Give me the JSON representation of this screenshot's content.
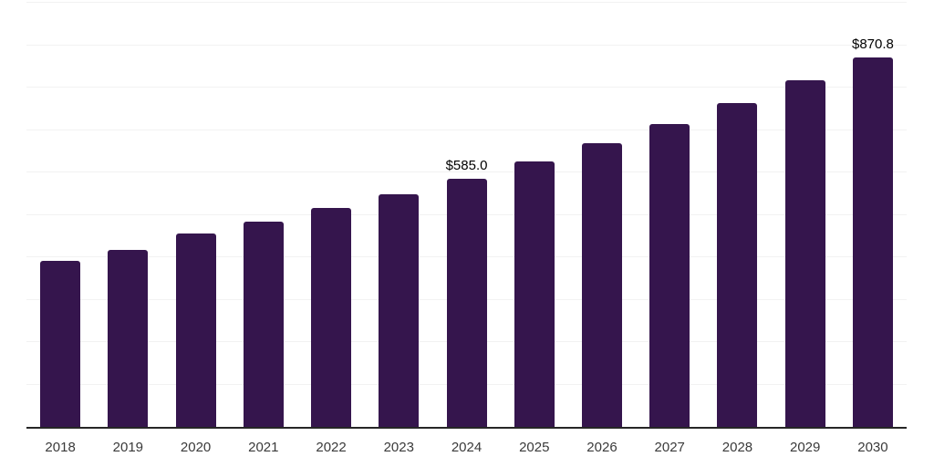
{
  "chart_data": {
    "type": "bar",
    "title": "",
    "xlabel": "",
    "ylabel": "",
    "categories": [
      "2018",
      "2019",
      "2020",
      "2021",
      "2022",
      "2023",
      "2024",
      "2025",
      "2026",
      "2027",
      "2028",
      "2029",
      "2030"
    ],
    "values": [
      391.4,
      416.6,
      455.9,
      483.5,
      516.8,
      547.7,
      585.0,
      625.2,
      669.5,
      714.0,
      764.1,
      817.8,
      870.8
    ],
    "bar_labels": [
      null,
      null,
      null,
      null,
      null,
      null,
      "$585.0",
      null,
      null,
      null,
      null,
      null,
      "$870.8"
    ],
    "ylim": [
      0,
      1000
    ],
    "grid_step": 100,
    "grid_visible": true,
    "legend_position": "none",
    "colors": {
      "bar": "#35154d",
      "grid": "#f2f2f2",
      "axis": "#262626",
      "tick_text": "#3a3a3a",
      "label_text": "#000000",
      "background": "#ffffff"
    }
  }
}
